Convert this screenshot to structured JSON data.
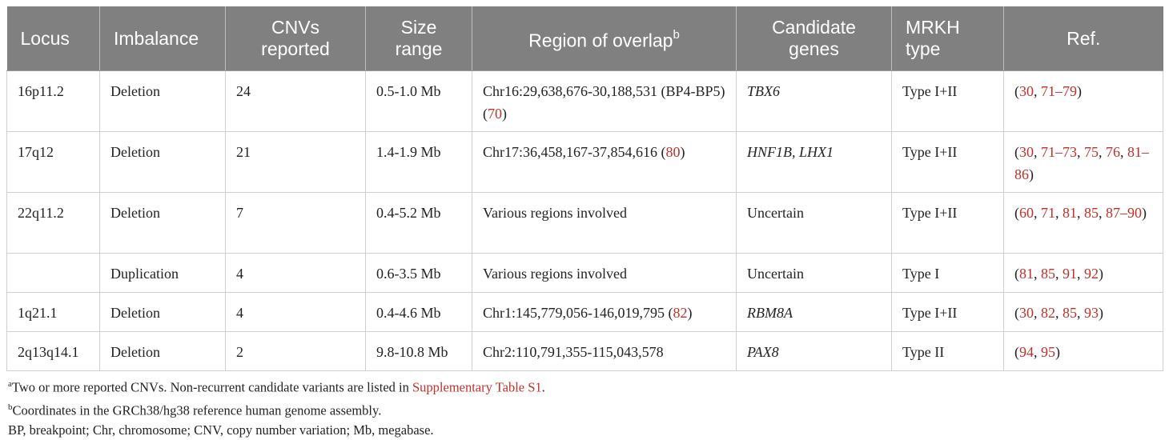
{
  "table": {
    "headers": {
      "locus": "Locus",
      "imbalance": "Imbalance",
      "cnvs_line1": "CNVs",
      "cnvs_line2": "reported",
      "size_line1": "Size",
      "size_line2": "range",
      "region": "Region of overlap",
      "region_sup": "b",
      "genes_line1": "Candidate",
      "genes_line2": "genes",
      "mrkh_line1": "MRKH",
      "mrkh_line2": "type",
      "ref": "Ref."
    },
    "rows": [
      {
        "locus": "16p11.2",
        "imbalance": "Deletion",
        "cnvs": "24",
        "size": "0.5-1.0 Mb",
        "region_a": "Chr16:29,638,676-30,188,531 (BP4-BP5) (",
        "region_ref": "70",
        "region_b": ")",
        "genes": "TBX6",
        "mrkh": "Type I+II",
        "ref_open": "(",
        "r1": "30",
        "s1": ", ",
        "r2": "71–79",
        "ref_close": ")"
      },
      {
        "locus": "17q12",
        "imbalance": "Deletion",
        "cnvs": "21",
        "size": "1.4-1.9 Mb",
        "region_a": "Chr17:36,458,167-37,854,616 (",
        "region_ref": "80",
        "region_b": ")",
        "genes": "HNF1B, LHX1",
        "mrkh": "Type I+II",
        "ref_open": "(",
        "r1": "30",
        "s1": ", ",
        "r2": "71–73",
        "s2": ", ",
        "r3": "75",
        "s3": ", ",
        "r4": "76",
        "s4": ", ",
        "r5": "81–86",
        "ref_close": ")"
      },
      {
        "locus": "22q11.2",
        "imbalance": "Deletion",
        "cnvs": "7",
        "size": "0.4-5.2 Mb",
        "region_a": "Various regions involved",
        "genes": "Uncertain",
        "mrkh": "Type I+II",
        "ref_open": "(",
        "r1": "60",
        "s1": ", ",
        "r2": "71",
        "s2": ", ",
        "r3": "81",
        "s3": ", ",
        "r4": "85",
        "s4": ", ",
        "r5": "87–90",
        "ref_close": ")"
      },
      {
        "locus": "",
        "imbalance": "Duplication",
        "cnvs": "4",
        "size": "0.6-3.5 Mb",
        "region_a": "Various regions involved",
        "genes": "Uncertain",
        "mrkh": "Type I",
        "ref_open": "(",
        "r1": "81",
        "s1": ", ",
        "r2": "85",
        "s2": ", ",
        "r3": "91",
        "s3": ", ",
        "r4": "92",
        "ref_close": ")"
      },
      {
        "locus": "1q21.1",
        "imbalance": "Deletion",
        "cnvs": "4",
        "size": "0.4-4.6 Mb",
        "region_a": "Chr1:145,779,056-146,019,795 (",
        "region_ref": "82",
        "region_b": ")",
        "genes": "RBM8A",
        "mrkh": "Type I+II",
        "ref_open": "(",
        "r1": "30",
        "s1": ", ",
        "r2": "82",
        "s2": ", ",
        "r3": "85",
        "s3": ", ",
        "r4": "93",
        "ref_close": ")"
      },
      {
        "locus": "2q13q14.1",
        "imbalance": "Deletion",
        "cnvs": "2",
        "size": "9.8-10.8 Mb",
        "region_a": "Chr2:110,791,355-115,043,578",
        "genes": "PAX8",
        "mrkh": "Type II",
        "ref_open": "(",
        "r1": "94",
        "s1": ", ",
        "r2": "95",
        "ref_close": ")"
      }
    ]
  },
  "notes": {
    "a_sup": "a",
    "a_text": "Two or more reported CNVs. Non-recurrent candidate variants are listed in ",
    "a_link": "Supplementary Table S1",
    "a_end": ".",
    "b_sup": "b",
    "b_text": "Coordinates in the GRCh38/hg38 reference human genome assembly.",
    "abbrev": "BP, breakpoint; Chr, chromosome; CNV, copy number variation; Mb, megabase."
  },
  "colors": {
    "header_bg": "#808080",
    "link": "#c0302b",
    "border": "#cfcfcf"
  }
}
